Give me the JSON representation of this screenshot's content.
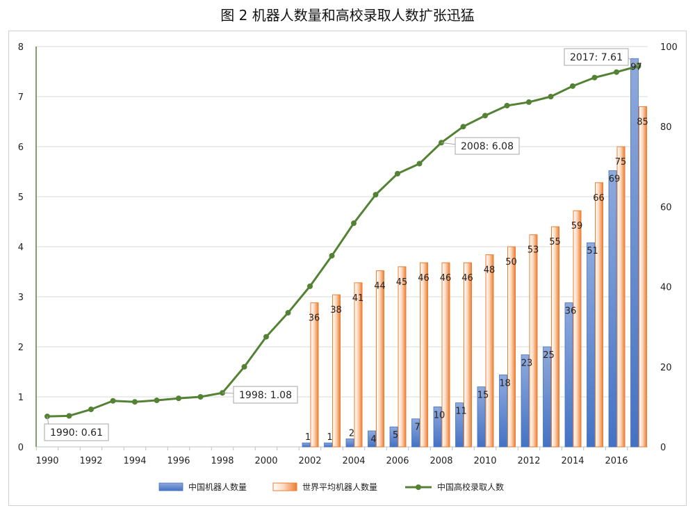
{
  "chart_data": {
    "type": "bar",
    "title": "图 2  机器人数量和高校录取人数扩张迅猛",
    "x": [
      1990,
      1991,
      1992,
      1993,
      1994,
      1995,
      1996,
      1997,
      1998,
      1999,
      2000,
      2001,
      2002,
      2003,
      2004,
      2005,
      2006,
      2007,
      2008,
      2009,
      2010,
      2011,
      2012,
      2013,
      2014,
      2015,
      2016,
      2017
    ],
    "x_tick_labels": [
      "1990",
      "1992",
      "1994",
      "1996",
      "1998",
      "2000",
      "2002",
      "2004",
      "2006",
      "2008",
      "2010",
      "2012",
      "2014",
      "2016"
    ],
    "left_axis": {
      "ylim": [
        0,
        8
      ],
      "ticks": [
        "0",
        "1",
        "2",
        "3",
        "4",
        "5",
        "6",
        "7",
        "8"
      ]
    },
    "right_axis": {
      "ylim": [
        0,
        100
      ],
      "ticks": [
        "0",
        "20",
        "40",
        "60",
        "80",
        "100"
      ]
    },
    "series": [
      {
        "name": "中国机器人数量",
        "kind": "bar",
        "axis": "right",
        "color": "#6f8fd3",
        "x": [
          2002,
          2003,
          2004,
          2005,
          2006,
          2007,
          2008,
          2009,
          2010,
          2011,
          2012,
          2013,
          2014,
          2015,
          2016,
          2017
        ],
        "values": [
          1,
          1,
          2,
          4,
          5,
          7,
          10,
          11,
          15,
          18,
          23,
          25,
          36,
          51,
          69,
          97
        ],
        "labels": [
          "1",
          "1",
          "2",
          "4",
          "5",
          "7",
          "10",
          "11",
          "15",
          "18",
          "23",
          "25",
          "36",
          "51",
          "69",
          "97"
        ]
      },
      {
        "name": "世界平均机器人数量",
        "kind": "bar",
        "axis": "right",
        "color": "#ed7d31",
        "x": [
          2002,
          2003,
          2004,
          2005,
          2006,
          2007,
          2008,
          2009,
          2010,
          2011,
          2012,
          2013,
          2014,
          2015,
          2016,
          2017
        ],
        "values": [
          36,
          38,
          41,
          44,
          45,
          46,
          46,
          46,
          48,
          50,
          53,
          55,
          59,
          66,
          75,
          85
        ],
        "labels": [
          "36",
          "38",
          "41",
          "44",
          "45",
          "46",
          "46",
          "46",
          "48",
          "50",
          "53",
          "55",
          "59",
          "66",
          "75",
          "85"
        ]
      },
      {
        "name": "中国高校录取人数",
        "kind": "line",
        "axis": "left",
        "color": "#548235",
        "x": [
          1990,
          1991,
          1992,
          1993,
          1994,
          1995,
          1996,
          1997,
          1998,
          1999,
          2000,
          2001,
          2002,
          2003,
          2004,
          2005,
          2006,
          2007,
          2008,
          2009,
          2010,
          2011,
          2012,
          2013,
          2014,
          2015,
          2016,
          2017
        ],
        "values": [
          0.61,
          0.62,
          0.75,
          0.92,
          0.9,
          0.93,
          0.97,
          1.0,
          1.08,
          1.6,
          2.2,
          2.68,
          3.21,
          3.82,
          4.47,
          5.04,
          5.46,
          5.66,
          6.08,
          6.4,
          6.62,
          6.82,
          6.89,
          7.0,
          7.21,
          7.38,
          7.49,
          7.61
        ]
      }
    ],
    "callouts": [
      {
        "x": 1990,
        "text": "1990: 0.61"
      },
      {
        "x": 1998,
        "text": "1998: 1.08"
      },
      {
        "x": 2008,
        "text": "2008: 6.08"
      },
      {
        "x": 2017,
        "text": "2017: 7.61"
      }
    ],
    "legend_position": "bottom",
    "grid": true
  }
}
